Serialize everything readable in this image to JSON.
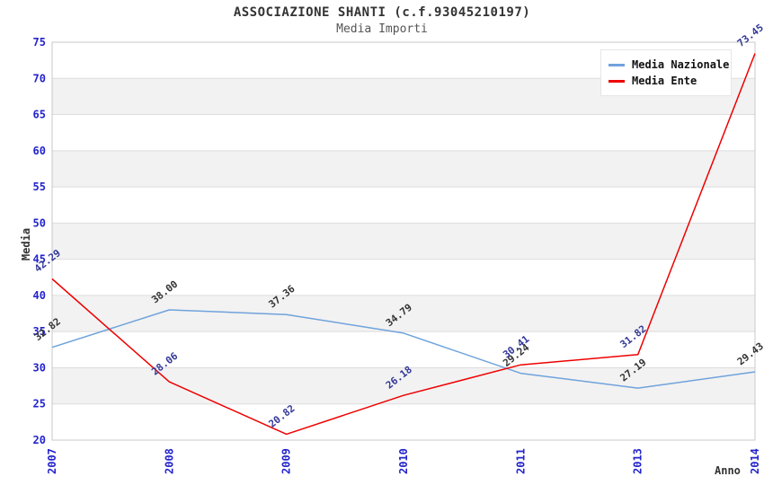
{
  "chart_data": {
    "type": "line",
    "title": "ASSOCIAZIONE SHANTI (c.f.93045210197)",
    "subtitle": "Media Importi",
    "xlabel": "Anno",
    "ylabel": "Media",
    "categories": [
      "2007",
      "2008",
      "2009",
      "2010",
      "2011",
      "2013",
      "2014"
    ],
    "series": [
      {
        "name": "Media Nazionale",
        "color": "#6fa3dc",
        "label_color": "#333333",
        "values": [
          32.82,
          38.0,
          37.36,
          34.79,
          29.24,
          27.19,
          29.43
        ]
      },
      {
        "name": "Media Ente",
        "color": "#ee0000",
        "label_color": "#323799",
        "values": [
          42.29,
          28.06,
          20.82,
          26.18,
          30.41,
          31.82,
          73.45
        ]
      }
    ],
    "ylim": [
      20,
      75
    ],
    "ytick_step": 5,
    "grid": "horizontal-bands",
    "band_color": "#f2f2f2",
    "grid_line_color": "#dcdcdc",
    "plot_border_color": "#c8c8c8",
    "axis_tick_color": "#2323cd",
    "legend_position": "top-right"
  }
}
